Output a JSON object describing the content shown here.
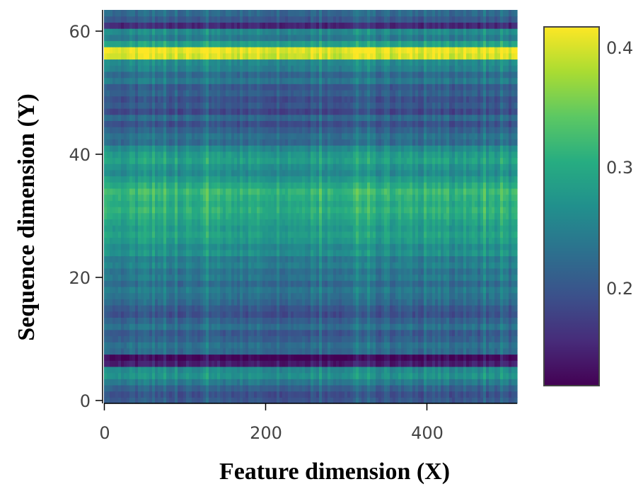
{
  "chart_data": {
    "type": "heatmap",
    "title": "",
    "xlabel": "Feature dimension (X)",
    "ylabel": "Sequence dimension (Y)",
    "xlim": [
      0,
      511
    ],
    "ylim": [
      0,
      63
    ],
    "n_cols": 512,
    "n_rows": 64,
    "x_ticks": [
      0,
      200,
      400
    ],
    "x_tick_labels": [
      "0",
      "200",
      "400"
    ],
    "y_ticks": [
      0,
      20,
      40,
      60
    ],
    "y_tick_labels": [
      "0",
      "20",
      "40",
      "60"
    ],
    "colorscale": "viridis",
    "colorbar": {
      "range": [
        0.115,
        0.42
      ],
      "ticks": [
        0.2,
        0.3,
        0.4
      ],
      "tick_labels": [
        "0.2",
        "0.3",
        "0.4"
      ]
    },
    "row_means": [
      0.2,
      0.19,
      0.21,
      0.24,
      0.27,
      0.26,
      0.14,
      0.12,
      0.22,
      0.23,
      0.21,
      0.2,
      0.23,
      0.21,
      0.19,
      0.2,
      0.22,
      0.23,
      0.24,
      0.22,
      0.24,
      0.23,
      0.25,
      0.24,
      0.27,
      0.26,
      0.28,
      0.29,
      0.28,
      0.29,
      0.3,
      0.31,
      0.3,
      0.31,
      0.32,
      0.3,
      0.28,
      0.26,
      0.27,
      0.29,
      0.28,
      0.26,
      0.22,
      0.23,
      0.21,
      0.19,
      0.22,
      0.18,
      0.2,
      0.19,
      0.21,
      0.2,
      0.24,
      0.22,
      0.25,
      0.26,
      0.4,
      0.41,
      0.29,
      0.24,
      0.26,
      0.15,
      0.2,
      0.22
    ]
  }
}
